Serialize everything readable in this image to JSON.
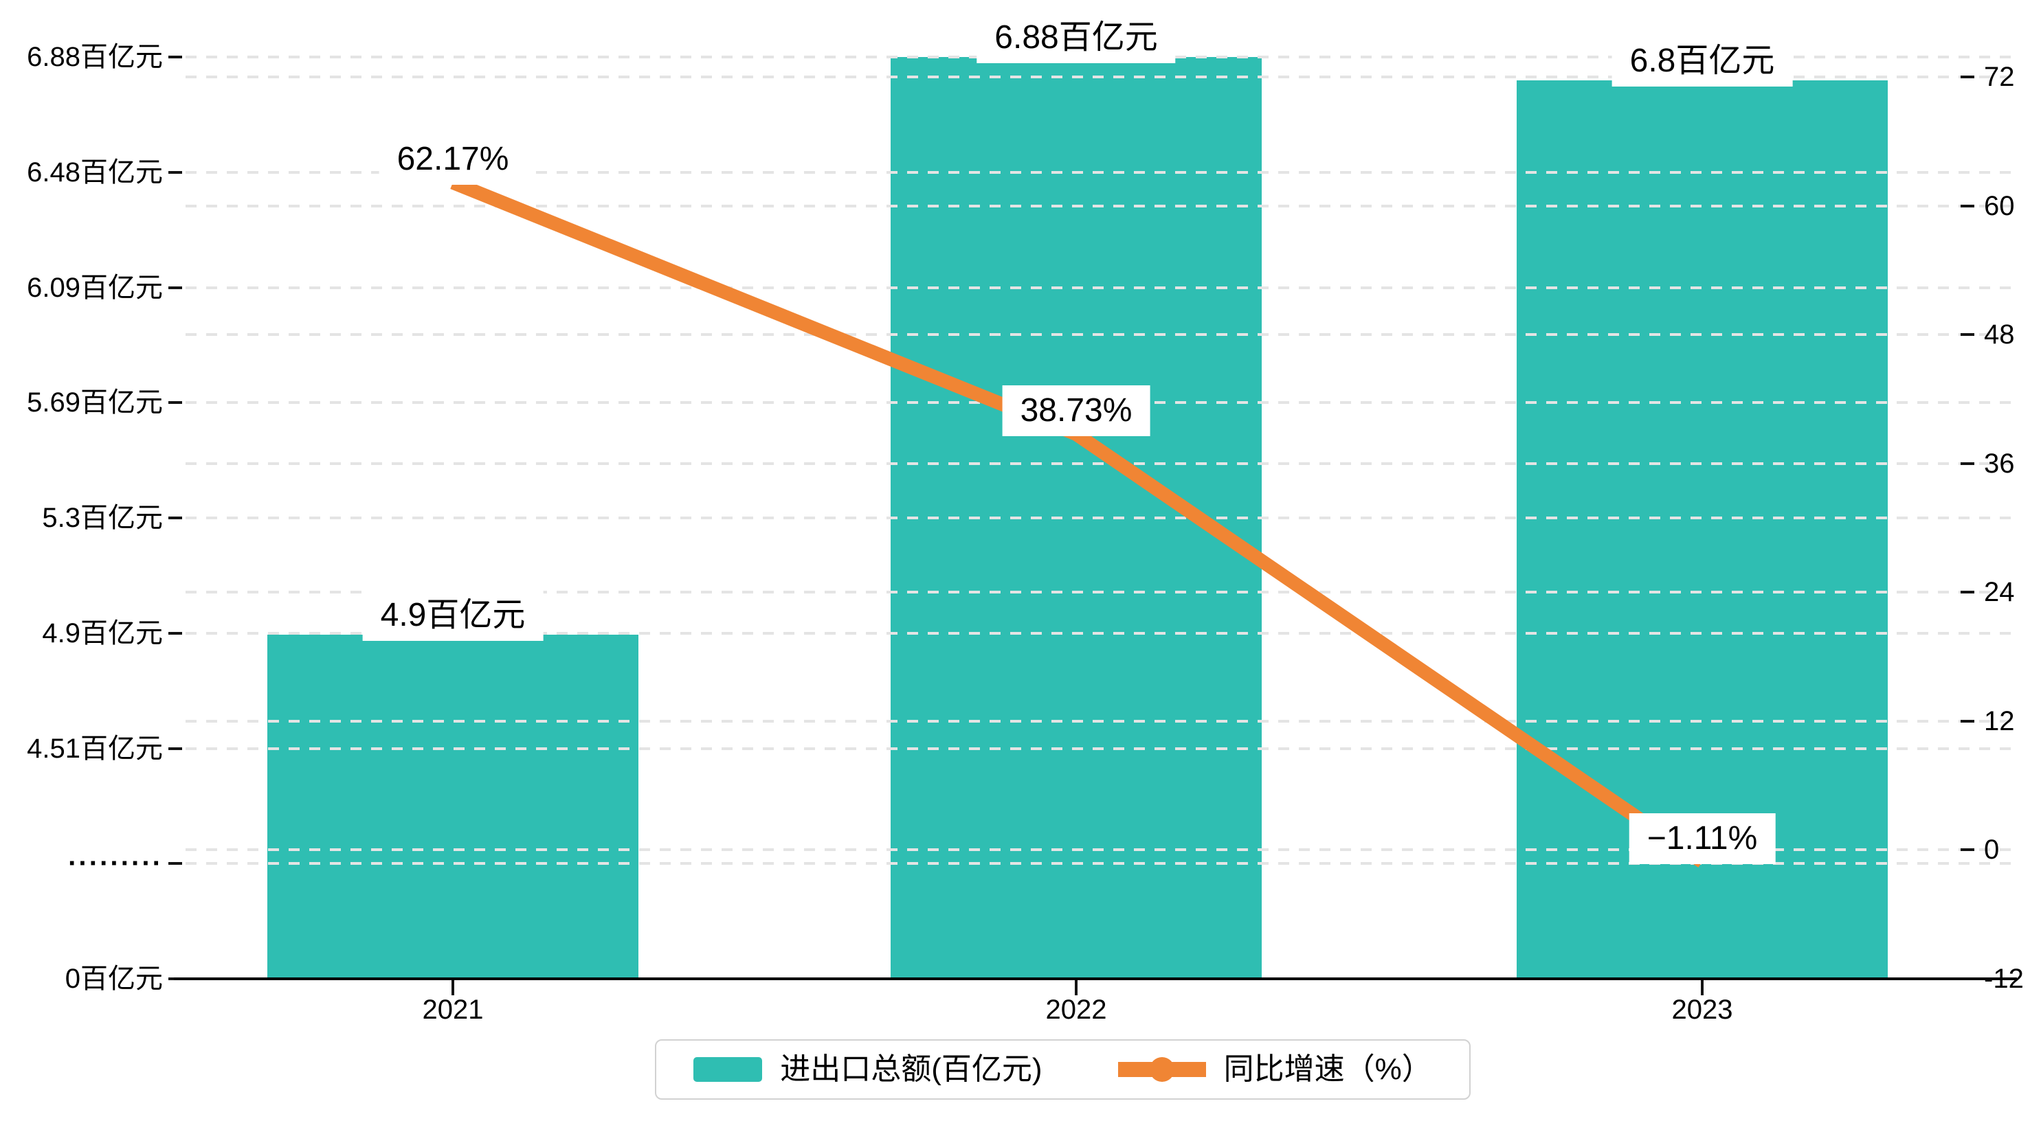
{
  "chart_data": {
    "type": "bar",
    "categories": [
      "2021",
      "2022",
      "2023"
    ],
    "series": [
      {
        "name": "进出口总额(百亿元)",
        "type": "bar",
        "axis": "left",
        "color": "#2fbeb2",
        "values": [
          4.9,
          6.88,
          6.8
        ],
        "point_labels": [
          "4.9百亿元",
          "6.88百亿元",
          "6.8百亿元"
        ]
      },
      {
        "name": "同比增速（%）",
        "type": "line",
        "axis": "right",
        "color": "#f08534",
        "values": [
          62.17,
          38.73,
          -1.11
        ],
        "point_labels": [
          "62.17%",
          "38.73%",
          "−1.11%"
        ]
      }
    ],
    "left_axis": {
      "tick_labels": [
        "6.88百亿元",
        "6.48百亿元",
        "6.09百亿元",
        "5.69百亿元",
        "5.3百亿元",
        "4.9百亿元",
        "4.51百亿元",
        "·········",
        "0百亿元"
      ],
      "broken_axis": true,
      "top_value": 6.88,
      "unit": "百亿元"
    },
    "right_axis": {
      "tick_labels": [
        "72",
        "60",
        "48",
        "36",
        "24",
        "12",
        "0",
        "-12"
      ],
      "max": 72,
      "min": -12,
      "step": 12
    },
    "legend": [
      {
        "label": "进出口总额(百亿元)",
        "symbol": "bar-swatch"
      },
      {
        "label": "同比增速（%）",
        "symbol": "line-with-dot"
      }
    ],
    "grid": "dashed-horizontal",
    "title": ""
  },
  "colors": {
    "bar": "#2fbeb2",
    "line": "#f08534",
    "gridline": "#e4e4e4",
    "axis": "#141414",
    "legend_border": "#d2d2d2",
    "label_bg": "#ffffff",
    "text": "#000000"
  }
}
